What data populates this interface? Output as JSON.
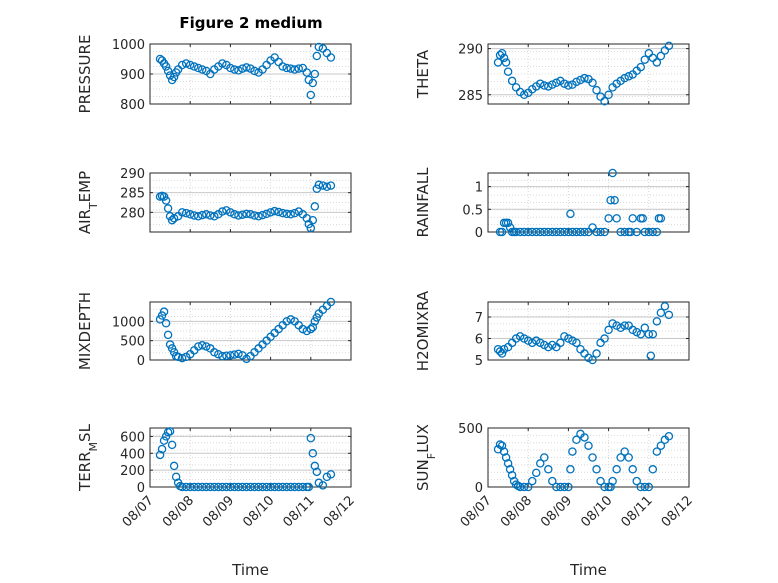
{
  "figure_title": "Figure 2 medium",
  "colors": {
    "marker": "#0072BD",
    "grid": "#d9d9d9",
    "axis": "#262626"
  },
  "x_ticks": [
    "08/07",
    "08/08",
    "08/09",
    "08/10",
    "08/11",
    "08/12"
  ],
  "x_label": "Time",
  "chart_data": [
    {
      "type": "scatter",
      "ylabel": "PRESSURE",
      "ylim": [
        800,
        1000
      ],
      "yticks": [
        800,
        900,
        1000
      ],
      "xrange": [
        0,
        5
      ],
      "grid": true,
      "marker": "o",
      "x": [
        0.25,
        0.3,
        0.35,
        0.4,
        0.45,
        0.5,
        0.55,
        0.6,
        0.65,
        0.7,
        0.8,
        0.9,
        1.0,
        1.1,
        1.2,
        1.3,
        1.4,
        1.5,
        1.6,
        1.7,
        1.8,
        1.9,
        2.0,
        2.1,
        2.2,
        2.3,
        2.4,
        2.5,
        2.6,
        2.7,
        2.8,
        2.9,
        3.0,
        3.1,
        3.2,
        3.3,
        3.4,
        3.5,
        3.6,
        3.7,
        3.8,
        3.9,
        3.95,
        4.0,
        4.05,
        4.1,
        4.15,
        4.2,
        4.3,
        4.4,
        4.5
      ],
      "y": [
        950,
        945,
        935,
        925,
        910,
        895,
        880,
        890,
        905,
        915,
        930,
        935,
        930,
        925,
        920,
        915,
        910,
        900,
        915,
        925,
        935,
        930,
        920,
        915,
        912,
        918,
        922,
        918,
        910,
        905,
        915,
        930,
        945,
        955,
        940,
        925,
        920,
        918,
        915,
        918,
        920,
        905,
        880,
        830,
        870,
        900,
        960,
        990,
        985,
        970,
        955
      ]
    },
    {
      "type": "scatter",
      "ylabel": "THETA",
      "ylim": [
        284,
        290.5
      ],
      "yticks": [
        285,
        290
      ],
      "xrange": [
        0,
        5
      ],
      "grid": true,
      "marker": "o",
      "x": [
        0.25,
        0.3,
        0.35,
        0.4,
        0.45,
        0.5,
        0.6,
        0.7,
        0.8,
        0.9,
        1.0,
        1.1,
        1.2,
        1.3,
        1.4,
        1.5,
        1.6,
        1.7,
        1.8,
        1.9,
        2.0,
        2.1,
        2.2,
        2.3,
        2.4,
        2.5,
        2.6,
        2.7,
        2.8,
        2.9,
        3.0,
        3.1,
        3.2,
        3.3,
        3.4,
        3.5,
        3.6,
        3.7,
        3.8,
        3.9,
        4.0,
        4.1,
        4.2,
        4.3,
        4.4,
        4.5
      ],
      "y": [
        288.5,
        289.3,
        289.5,
        289.0,
        288.5,
        287.5,
        286.5,
        285.8,
        285.3,
        285.0,
        285.2,
        285.6,
        285.9,
        286.2,
        286.0,
        285.9,
        286.1,
        286.3,
        286.5,
        286.2,
        286.0,
        286.1,
        286.4,
        286.6,
        286.8,
        286.7,
        286.3,
        285.5,
        284.8,
        284.3,
        285.0,
        285.8,
        286.2,
        286.5,
        286.8,
        287.0,
        287.2,
        287.6,
        288.0,
        288.8,
        289.5,
        289.0,
        288.5,
        289.2,
        289.8,
        290.3
      ]
    },
    {
      "type": "scatter",
      "ylabel": "AIR_TEMP",
      "ylim": [
        275,
        290
      ],
      "yticks": [
        280,
        285,
        290
      ],
      "xrange": [
        0,
        5
      ],
      "grid": true,
      "marker": "o",
      "x": [
        0.25,
        0.3,
        0.35,
        0.4,
        0.45,
        0.5,
        0.55,
        0.6,
        0.7,
        0.8,
        0.9,
        1.0,
        1.1,
        1.2,
        1.3,
        1.4,
        1.5,
        1.6,
        1.7,
        1.8,
        1.9,
        2.0,
        2.1,
        2.2,
        2.3,
        2.4,
        2.5,
        2.6,
        2.7,
        2.8,
        2.9,
        3.0,
        3.1,
        3.2,
        3.3,
        3.4,
        3.5,
        3.6,
        3.7,
        3.8,
        3.9,
        3.95,
        4.0,
        4.05,
        4.1,
        4.15,
        4.2,
        4.3,
        4.4,
        4.5
      ],
      "y": [
        284,
        284.2,
        284,
        283,
        281,
        279,
        278,
        278.5,
        279,
        280,
        279.8,
        279.5,
        279.2,
        279,
        279.3,
        279.5,
        279.2,
        279,
        279.5,
        280.2,
        280.5,
        280.0,
        279.5,
        279.2,
        279.4,
        279.6,
        279.5,
        279.2,
        279.0,
        279.3,
        279.6,
        280.0,
        280.3,
        280.1,
        279.8,
        279.6,
        279.5,
        279.8,
        280.2,
        279.5,
        278.5,
        277.0,
        276.0,
        278.0,
        281.5,
        286.0,
        287.0,
        286.8,
        286.5,
        286.8
      ]
    },
    {
      "type": "scatter",
      "ylabel": "RAINFALL",
      "ylim": [
        0,
        1.3
      ],
      "yticks": [
        0,
        0.5,
        1
      ],
      "xrange": [
        0,
        5
      ],
      "grid": true,
      "marker": "o",
      "x": [
        0.3,
        0.35,
        0.4,
        0.45,
        0.5,
        0.55,
        0.6,
        0.65,
        0.7,
        0.8,
        0.9,
        1.0,
        1.1,
        1.2,
        1.3,
        1.4,
        1.5,
        1.6,
        1.7,
        1.8,
        1.9,
        2.0,
        2.05,
        2.1,
        2.2,
        2.3,
        2.4,
        2.5,
        2.6,
        2.7,
        2.8,
        2.9,
        3.0,
        3.05,
        3.1,
        3.15,
        3.2,
        3.3,
        3.4,
        3.5,
        3.55,
        3.6,
        3.7,
        3.8,
        3.85,
        3.9,
        4.0,
        4.1,
        4.2,
        4.25,
        4.3
      ],
      "y": [
        0,
        0,
        0.2,
        0.2,
        0.2,
        0.1,
        0,
        0,
        0,
        0,
        0,
        0,
        0,
        0,
        0,
        0,
        0,
        0,
        0,
        0,
        0,
        0,
        0.4,
        0,
        0,
        0,
        0,
        0,
        0.1,
        0,
        0,
        0,
        0.3,
        0.7,
        1.3,
        0.7,
        0.3,
        0,
        0,
        0,
        0,
        0.3,
        0,
        0.3,
        0.3,
        0,
        0,
        0,
        0,
        0.3,
        0.3
      ]
    },
    {
      "type": "scatter",
      "ylabel": "MIXDEPTH",
      "ylim": [
        0,
        1500
      ],
      "yticks": [
        0,
        500,
        1000
      ],
      "xrange": [
        0,
        5
      ],
      "grid": true,
      "marker": "o",
      "x": [
        0.25,
        0.3,
        0.35,
        0.4,
        0.45,
        0.5,
        0.55,
        0.6,
        0.65,
        0.7,
        0.8,
        0.9,
        1.0,
        1.1,
        1.2,
        1.3,
        1.4,
        1.5,
        1.6,
        1.7,
        1.8,
        1.9,
        2.0,
        2.1,
        2.2,
        2.3,
        2.4,
        2.5,
        2.6,
        2.7,
        2.8,
        2.9,
        3.0,
        3.1,
        3.2,
        3.3,
        3.4,
        3.5,
        3.6,
        3.7,
        3.8,
        3.9,
        4.0,
        4.05,
        4.1,
        4.15,
        4.2,
        4.3,
        4.4,
        4.5
      ],
      "y": [
        1050,
        1150,
        1250,
        950,
        650,
        400,
        300,
        200,
        100,
        80,
        50,
        80,
        150,
        250,
        350,
        380,
        350,
        300,
        200,
        150,
        100,
        110,
        120,
        140,
        160,
        120,
        30,
        100,
        200,
        300,
        400,
        500,
        600,
        700,
        800,
        900,
        1000,
        1050,
        1000,
        900,
        800,
        750,
        800,
        850,
        1000,
        1100,
        1200,
        1300,
        1400,
        1500
      ]
    },
    {
      "type": "scatter",
      "ylabel": "H2OMIXRA",
      "ylim": [
        5,
        7.7
      ],
      "yticks": [
        5,
        6,
        7
      ],
      "xrange": [
        0,
        5
      ],
      "grid": true,
      "marker": "o",
      "x": [
        0.25,
        0.3,
        0.35,
        0.4,
        0.5,
        0.6,
        0.7,
        0.8,
        0.9,
        1.0,
        1.1,
        1.2,
        1.3,
        1.4,
        1.5,
        1.6,
        1.7,
        1.8,
        1.9,
        2.0,
        2.1,
        2.2,
        2.3,
        2.4,
        2.5,
        2.6,
        2.7,
        2.8,
        2.9,
        3.0,
        3.1,
        3.2,
        3.3,
        3.4,
        3.5,
        3.6,
        3.7,
        3.8,
        3.9,
        4.0,
        4.05,
        4.1,
        4.2,
        4.3,
        4.4,
        4.5
      ],
      "y": [
        5.5,
        5.4,
        5.3,
        5.5,
        5.6,
        5.8,
        6.0,
        6.1,
        6.0,
        5.9,
        5.8,
        5.9,
        5.8,
        5.7,
        5.6,
        5.7,
        5.6,
        5.8,
        6.1,
        6.0,
        5.9,
        5.8,
        5.5,
        5.3,
        5.1,
        5.0,
        5.3,
        5.8,
        6.0,
        6.4,
        6.7,
        6.6,
        6.5,
        6.6,
        6.6,
        6.4,
        6.3,
        6.2,
        6.5,
        6.2,
        5.2,
        6.2,
        6.8,
        7.2,
        7.5,
        7.1
      ]
    },
    {
      "type": "scatter",
      "ylabel": "TERR_MSL",
      "ylim": [
        0,
        700
      ],
      "yticks": [
        0,
        200,
        400,
        600
      ],
      "xrange": [
        0,
        5
      ],
      "grid": true,
      "marker": "o",
      "x": [
        0.25,
        0.3,
        0.35,
        0.4,
        0.45,
        0.5,
        0.55,
        0.6,
        0.65,
        0.7,
        0.75,
        0.8,
        0.9,
        1.0,
        1.1,
        1.2,
        1.3,
        1.4,
        1.5,
        1.6,
        1.7,
        1.8,
        1.9,
        2.0,
        2.1,
        2.2,
        2.3,
        2.4,
        2.5,
        2.6,
        2.7,
        2.8,
        2.9,
        3.0,
        3.1,
        3.2,
        3.3,
        3.4,
        3.5,
        3.6,
        3.7,
        3.8,
        3.9,
        3.95,
        4.0,
        4.05,
        4.1,
        4.15,
        4.2,
        4.3,
        4.4,
        4.5
      ],
      "y": [
        380,
        450,
        550,
        600,
        650,
        660,
        500,
        250,
        120,
        50,
        10,
        0,
        0,
        0,
        0,
        0,
        0,
        0,
        0,
        0,
        0,
        0,
        0,
        0,
        0,
        0,
        0,
        0,
        0,
        0,
        0,
        0,
        0,
        0,
        0,
        0,
        0,
        0,
        0,
        0,
        0,
        0,
        0,
        0,
        580,
        400,
        250,
        180,
        50,
        20,
        120,
        150
      ]
    },
    {
      "type": "scatter",
      "ylabel": "SUN_FLUX",
      "ylim": [
        0,
        500
      ],
      "yticks": [
        0,
        500
      ],
      "xrange": [
        0,
        5
      ],
      "grid": true,
      "marker": "o",
      "x": [
        0.25,
        0.3,
        0.35,
        0.4,
        0.45,
        0.5,
        0.55,
        0.6,
        0.65,
        0.7,
        0.75,
        0.8,
        0.9,
        1.0,
        1.1,
        1.2,
        1.3,
        1.4,
        1.5,
        1.6,
        1.7,
        1.8,
        1.9,
        2.0,
        2.05,
        2.1,
        2.2,
        2.3,
        2.4,
        2.5,
        2.6,
        2.7,
        2.8,
        2.9,
        3.0,
        3.05,
        3.1,
        3.2,
        3.3,
        3.4,
        3.5,
        3.6,
        3.7,
        3.8,
        3.9,
        4.0,
        4.1,
        4.2,
        4.3,
        4.4,
        4.5
      ],
      "y": [
        320,
        360,
        350,
        300,
        250,
        200,
        150,
        100,
        50,
        20,
        10,
        0,
        0,
        0,
        50,
        120,
        200,
        250,
        150,
        50,
        0,
        0,
        0,
        0,
        150,
        300,
        400,
        450,
        420,
        350,
        250,
        150,
        50,
        0,
        0,
        0,
        50,
        150,
        250,
        300,
        250,
        150,
        50,
        0,
        0,
        0,
        150,
        300,
        350,
        400,
        430
      ]
    }
  ]
}
